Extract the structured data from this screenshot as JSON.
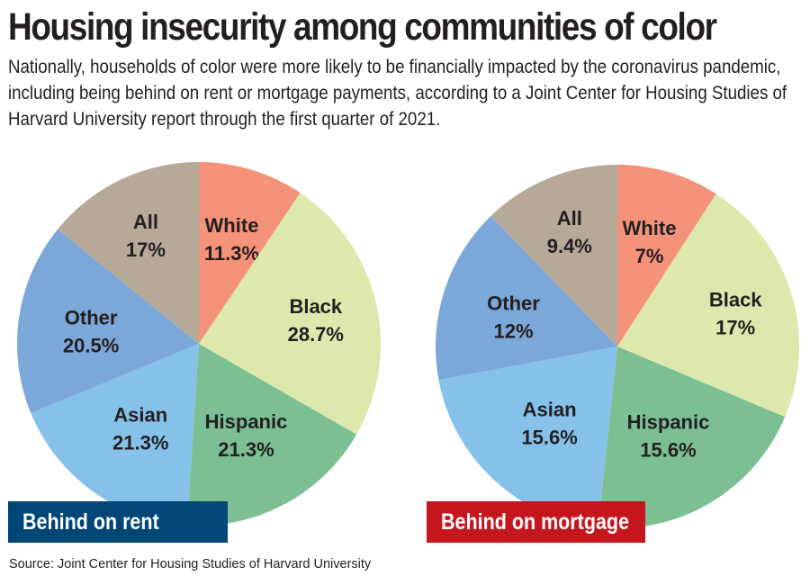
{
  "header": {
    "title": "Housing insecurity among communities of color",
    "subtitle": "Nationally, households of color were more likely to be financially impacted by the coronavirus pandemic, including being behind on rent or mortgage payments, according to a Joint Center for Housing Studies of Harvard University report through the first quarter of 2021."
  },
  "colors": {
    "White": "#f4927a",
    "Black": "#dde8ad",
    "Hispanic": "#7bbf93",
    "Asian": "#85c1e9",
    "Other": "#7ba7d9",
    "All": "#b6a998",
    "rent_badge": "#004677",
    "mortgage_badge": "#c4161c"
  },
  "chart_data": [
    {
      "type": "pie",
      "title": "Behind on rent",
      "start": "12 o'clock, clockwise",
      "slices": [
        {
          "label": "White",
          "value": 11.3,
          "display": "11.3%"
        },
        {
          "label": "Black",
          "value": 28.7,
          "display": "28.7%"
        },
        {
          "label": "Hispanic",
          "value": 21.3,
          "display": "21.3%"
        },
        {
          "label": "Asian",
          "value": 21.3,
          "display": "21.3%"
        },
        {
          "label": "Other",
          "value": 20.5,
          "display": "20.5%"
        },
        {
          "label": "All",
          "value": 17,
          "display": "17%"
        }
      ]
    },
    {
      "type": "pie",
      "title": "Behind on mortgage",
      "start": "12 o'clock, clockwise",
      "slices": [
        {
          "label": "White",
          "value": 7,
          "display": "7%"
        },
        {
          "label": "Black",
          "value": 17,
          "display": "17%"
        },
        {
          "label": "Hispanic",
          "value": 15.6,
          "display": "15.6%"
        },
        {
          "label": "Asian",
          "value": 15.6,
          "display": "15.6%"
        },
        {
          "label": "Other",
          "value": 12,
          "display": "12%"
        },
        {
          "label": "All",
          "value": 9.4,
          "display": "9.4%"
        }
      ]
    }
  ],
  "badges": {
    "rent": "Behind on rent",
    "mortgage": "Behind on mortgage"
  },
  "source": "Source: Joint Center for Housing Studies of Harvard University"
}
